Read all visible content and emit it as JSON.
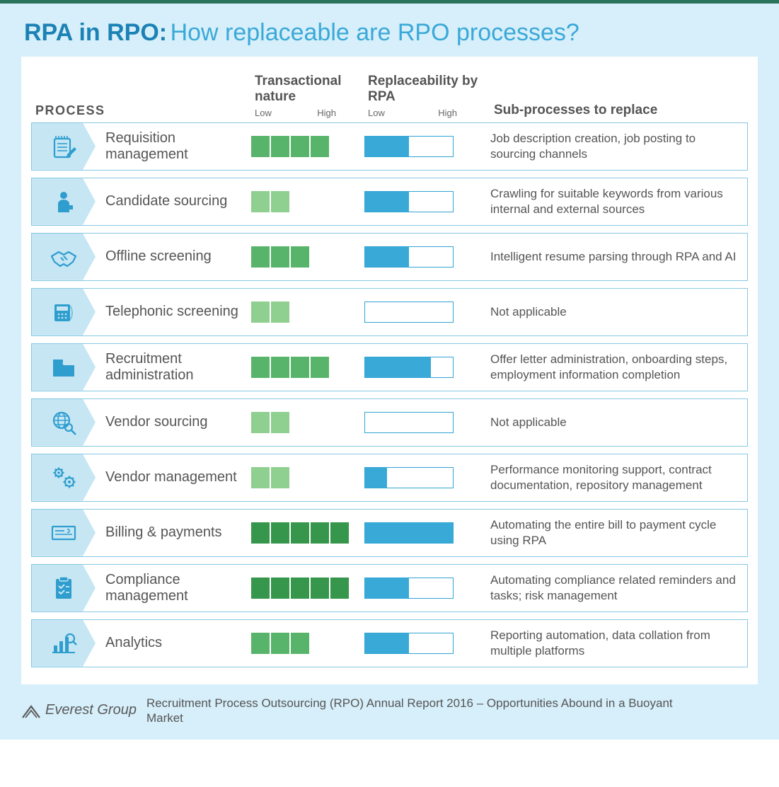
{
  "colors": {
    "page_bg": "#d6effa",
    "top_bar": "#29745b",
    "panel_bg": "#ffffff",
    "row_border": "#86c8e3",
    "chevron_bg": "#c6e6f4",
    "icon": "#2f9ecf",
    "title_bold": "#1c82b5",
    "title_light": "#3aa8d8",
    "heading_text": "#555555",
    "body_text": "#555555",
    "trans_low": "#8fcf90",
    "trans_mid": "#57b46a",
    "trans_high": "#35964c",
    "repl_border": "#32a4d4",
    "repl_fill": "#39aad8"
  },
  "title": {
    "bold": "RPA in RPO:",
    "light": " How replaceable are RPO processes?"
  },
  "headers": {
    "process": "PROCESS",
    "transactional": "Transactional nature",
    "replaceability": "Replaceability by RPA",
    "subprocesses": "Sub-processes to replace",
    "low": "Low",
    "high": "High"
  },
  "transactional_scale": {
    "max_cells": 5
  },
  "rows": [
    {
      "icon": "notepad",
      "name": "Requisition management",
      "trans_level": 4,
      "repl_pct": 50,
      "sub": "Job description creation, job posting to sourcing channels"
    },
    {
      "icon": "candidate",
      "name": "Candidate sourcing",
      "trans_level": 2,
      "repl_pct": 50,
      "sub": "Crawling for suitable keywords from various internal and external sources"
    },
    {
      "icon": "handshake",
      "name": "Offline screening",
      "trans_level": 3,
      "repl_pct": 50,
      "sub": "Intelligent resume parsing through RPA and AI"
    },
    {
      "icon": "phone",
      "name": "Telephonic screening",
      "trans_level": 2,
      "repl_pct": 0,
      "sub": "Not applicable"
    },
    {
      "icon": "folder",
      "name": "Recruitment administration",
      "trans_level": 4,
      "repl_pct": 75,
      "sub": "Offer letter administration, onboarding steps, employment information completion"
    },
    {
      "icon": "globe-search",
      "name": "Vendor sourcing",
      "trans_level": 2,
      "repl_pct": 0,
      "sub": "Not applicable"
    },
    {
      "icon": "gears",
      "name": "Vendor management",
      "trans_level": 2,
      "repl_pct": 25,
      "sub": "Performance monitoring support, contract documentation, repository management"
    },
    {
      "icon": "cheque",
      "name": "Billing & payments",
      "trans_level": 5,
      "repl_pct": 100,
      "sub": "Automating the entire bill to payment cycle using RPA"
    },
    {
      "icon": "clipboard",
      "name": "Compliance management",
      "trans_level": 5,
      "repl_pct": 50,
      "sub": "Automating compliance related reminders and tasks; risk management"
    },
    {
      "icon": "analytics",
      "name": "Analytics",
      "trans_level": 3,
      "repl_pct": 50,
      "sub": "Reporting automation, data collation from multiple platforms"
    }
  ],
  "footer": {
    "logo_text": "Everest Group",
    "text": "Recruitment Process Outsourcing (RPO) Annual Report 2016 – Opportunities Abound in a Buoyant Market"
  }
}
